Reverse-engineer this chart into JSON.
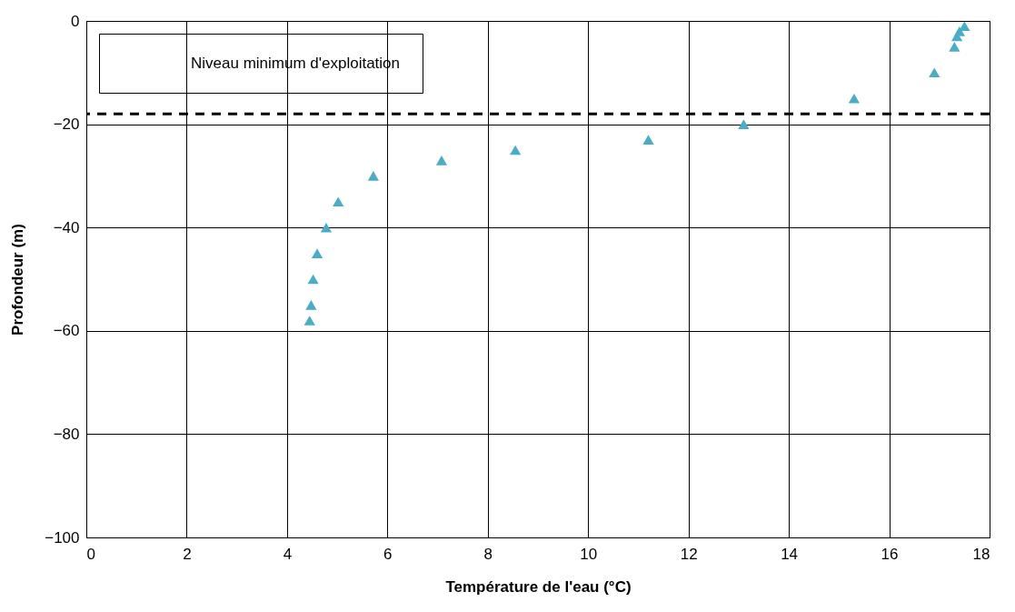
{
  "chart_data": {
    "type": "scatter",
    "xlabel": "Température de l'eau (°C)",
    "ylabel": "Profondeur (m)",
    "x": [
      4.45,
      4.48,
      4.52,
      4.6,
      4.78,
      5.02,
      5.72,
      7.08,
      8.55,
      11.2,
      13.1,
      15.3,
      16.9,
      17.3,
      17.35,
      17.4,
      17.5
    ],
    "series": [
      {
        "color": "#4bacc6",
        "values": [
          -58,
          -55,
          -50,
          -45,
          -40,
          -35,
          -30,
          -27,
          -25,
          -23,
          -20,
          -15,
          -10,
          -5,
          -3,
          -2,
          -1
        ]
      }
    ],
    "marker": "triangle",
    "legend": "top left",
    "xlim": [
      0,
      18
    ],
    "xticks": [
      0,
      2,
      4,
      6,
      8,
      10,
      12,
      14,
      16,
      18
    ],
    "ylim": [
      -100,
      0
    ],
    "yticks": [
      -100,
      -80,
      -60,
      -40,
      -20,
      0
    ],
    "grid": true,
    "ref_lines": [
      {
        "axis": "y",
        "value": -18,
        "label": "Niveau minimum d'exploitation",
        "color": "#000000",
        "line_style": "dashed"
      }
    ]
  }
}
